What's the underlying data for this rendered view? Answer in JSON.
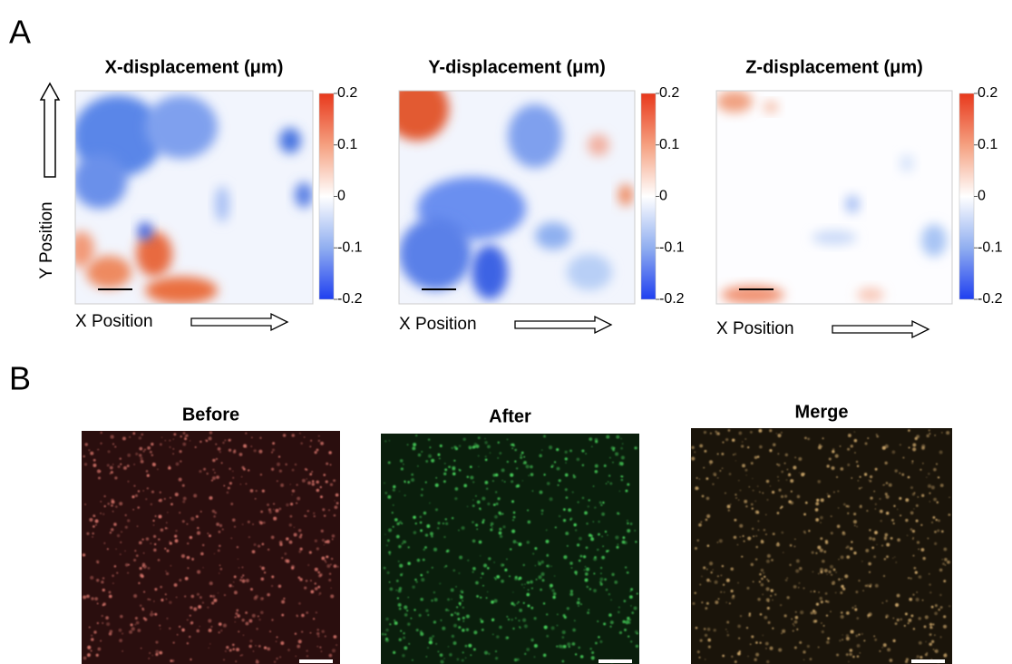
{
  "panel_a": {
    "label": "A",
    "y_label": "Y Position",
    "maps": [
      {
        "title": "X-displacement (μm)",
        "x_label": "X Position",
        "colorbar": {
          "lim": [
            -0.2,
            0.2
          ],
          "ticks": [
            0.2,
            0.1,
            0,
            -0.1,
            -0.2
          ]
        }
      },
      {
        "title": "Y-displacement (μm)",
        "x_label": "X Position",
        "colorbar": {
          "lim": [
            -0.2,
            0.2
          ],
          "ticks": [
            0.2,
            0.1,
            0,
            -0.1,
            -0.2
          ]
        }
      },
      {
        "title": "Z-displacement (μm)",
        "x_label": "X Position",
        "colorbar": {
          "lim": [
            -0.2,
            0.2
          ],
          "ticks": [
            0.2,
            0.1,
            0,
            -0.1,
            -0.2
          ]
        }
      }
    ]
  },
  "panel_b": {
    "label": "B",
    "images": [
      {
        "title": "Before"
      },
      {
        "title": "After"
      },
      {
        "title": "Merge"
      }
    ]
  }
}
